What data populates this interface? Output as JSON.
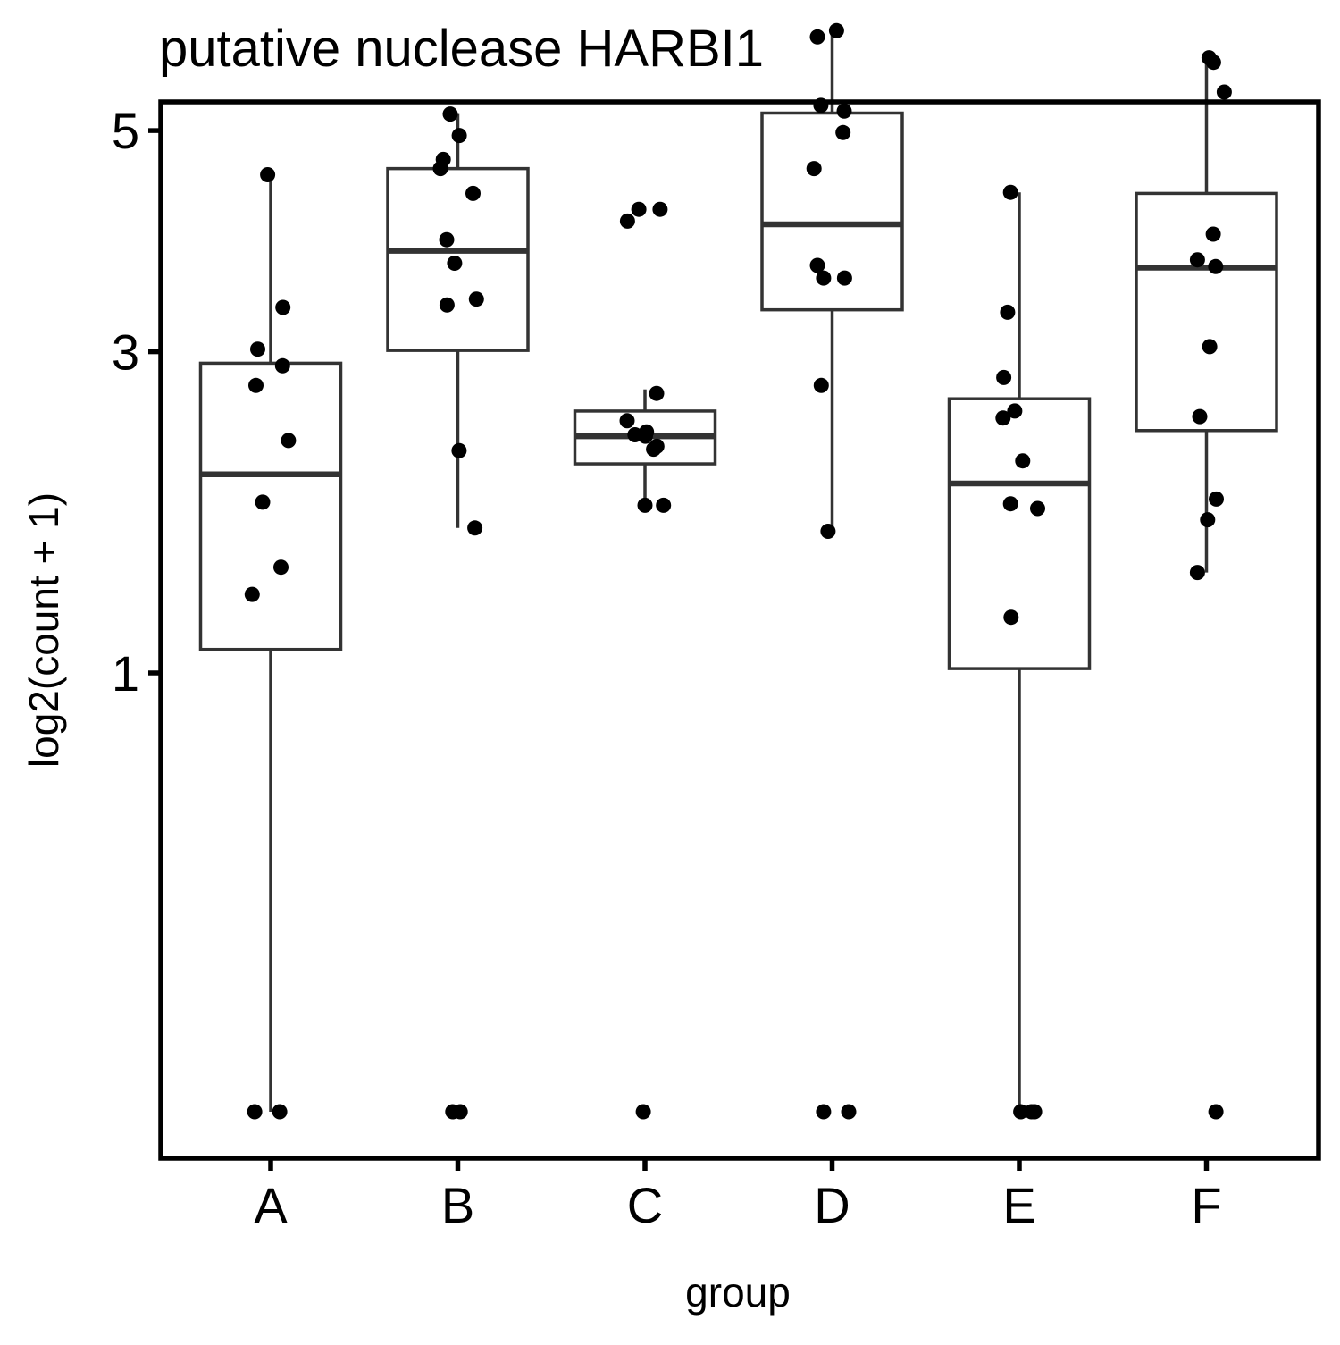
{
  "chart_data": {
    "type": "box",
    "title": "putative nuclease HARBI1",
    "xlabel": "group",
    "ylabel": "log2(count + 1)",
    "y_scale": "sqrt",
    "ylim": [
      0,
      6.25
    ],
    "y_ticks": [
      1,
      3,
      5
    ],
    "y_tick_labels": [
      "1",
      "3",
      "5"
    ],
    "grid": false,
    "categories": [
      "A",
      "B",
      "C",
      "D",
      "E",
      "F"
    ],
    "boxes": [
      {
        "group": "A",
        "whisker_low": 0,
        "q1": 1.11,
        "median": 2.11,
        "q3": 2.91,
        "whisker_high": 4.56
      },
      {
        "group": "B",
        "whisker_low": 1.77,
        "q1": 3.01,
        "median": 3.85,
        "q3": 4.62,
        "whisker_high": 5.17
      },
      {
        "group": "C",
        "whisker_low": 1.91,
        "q1": 2.18,
        "median": 2.37,
        "q3": 2.55,
        "whisker_high": 2.71
      },
      {
        "group": "D",
        "whisker_low": 1.75,
        "q1": 3.34,
        "median": 4.09,
        "q3": 5.18,
        "whisker_high": 6.07
      },
      {
        "group": "E",
        "whisker_low": 0,
        "q1": 1.02,
        "median": 2.05,
        "q3": 2.64,
        "whisker_high": 4.39
      },
      {
        "group": "F",
        "whisker_low": 1.51,
        "q1": 2.41,
        "median": 3.7,
        "q3": 4.38,
        "whisker_high": 5.77
      }
    ],
    "points": [
      {
        "group": "A",
        "values": [
          0,
          0,
          4.56,
          3.36,
          3.02,
          2.89,
          2.74,
          2.34,
          1.93,
          1.54,
          1.39
        ]
      },
      {
        "group": "B",
        "values": [
          0,
          0,
          5.17,
          4.95,
          4.71,
          4.62,
          4.38,
          3.95,
          3.74,
          3.43,
          3.38,
          2.27,
          1.77
        ]
      },
      {
        "group": "C",
        "values": [
          0,
          4.23,
          4.23,
          4.12,
          2.68,
          2.48,
          2.4,
          2.38,
          2.37,
          2.3,
          2.28,
          1.91,
          1.91
        ]
      },
      {
        "group": "D",
        "values": [
          0,
          0,
          6.07,
          6.0,
          5.26,
          5.2,
          4.98,
          4.62,
          3.72,
          3.61,
          3.61,
          2.74,
          1.75
        ]
      },
      {
        "group": "E",
        "values": [
          0,
          0,
          0,
          4.39,
          3.32,
          2.8,
          2.55,
          2.5,
          2.2,
          1.92,
          1.89,
          1.27
        ]
      },
      {
        "group": "F",
        "values": [
          0,
          5.77,
          5.72,
          5.4,
          4.0,
          3.77,
          3.71,
          3.04,
          2.51,
          1.95,
          1.82,
          1.51
        ]
      }
    ],
    "colors": {
      "box_stroke": "#333333",
      "box_fill": "#ffffff",
      "point": "#000000",
      "panel_border": "#000000"
    }
  }
}
